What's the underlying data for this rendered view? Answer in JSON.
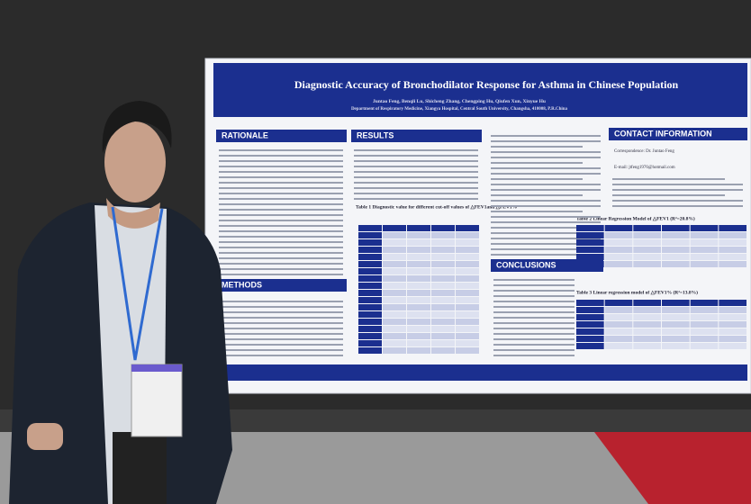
{
  "poster": {
    "title": "Diagnostic Accuracy of Bronchodilator Response for Asthma in Chinese Population",
    "authors": "Juntao Feng, Benqli Lu, Shicheng Zhang, Chengping Hu, Qiufen Xun, Xinyue Hu",
    "affiliation": "Department of Respiratory Medicine, Xiangya Hospital, Central South University, Changsha, 410008, P.R.China",
    "sections": {
      "rationale": "RATIONALE",
      "results": "RESULTS",
      "methods": "METHODS",
      "conclusions": "CONCLUSIONS",
      "contact": "CONTACT INFORMATION"
    },
    "tables": [
      "Table 1  Diagnostic value for different cut-off values of △FEV1and △FEV1%",
      "Table 2  Linear Regression Model of △FEV1 (R²=20.8%)",
      "Table 3  Linear regression model of △FEV1% (R²=13.8%)"
    ],
    "contact": [
      "Correspondence: Dr. Juntao Feng",
      "E-mail: jtfeng1976@hotmail.com"
    ]
  }
}
